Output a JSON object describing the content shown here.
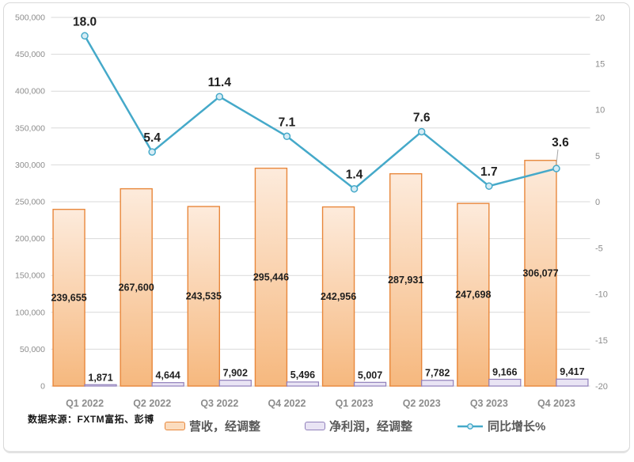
{
  "frame": {
    "source_note": "数据来源：FXTM富拓、彭博"
  },
  "legend": {
    "items": [
      {
        "label": "营收，经调整",
        "swatch": "bar",
        "fill": "#FBDCBE",
        "border": "#E8873B"
      },
      {
        "label": "净利润，经调整",
        "swatch": "bar",
        "fill": "#E9E4F4",
        "border": "#9180BB"
      },
      {
        "label": "同比增长%",
        "swatch": "line",
        "color": "#45A9C9",
        "marker_fill": "#D6ECF5"
      }
    ]
  },
  "chart_data": {
    "type": "combo-bar-line",
    "title": "",
    "categories": [
      "Q1 2022",
      "Q2 2022",
      "Q3 2022",
      "Q4 2022",
      "Q1 2023",
      "Q2 2023",
      "Q3 2023",
      "Q4 2023"
    ],
    "series": [
      {
        "name": "营收，经调整",
        "type": "bar",
        "axis": "left",
        "values": [
          239655,
          267600,
          243535,
          295446,
          242956,
          287931,
          247698,
          306077
        ],
        "labels": [
          "239,655",
          "267,600",
          "243,535",
          "295,446",
          "242,956",
          "287,931",
          "247,698",
          "306,077"
        ],
        "fill_top": "#FDEBDC",
        "fill_bottom": "#F6B87E",
        "border": "#E8873B"
      },
      {
        "name": "净利润，经调整",
        "type": "bar",
        "axis": "left",
        "values": [
          1871,
          4644,
          7902,
          5496,
          5007,
          7782,
          9166,
          9417
        ],
        "labels": [
          "1,871",
          "4,644",
          "7,902",
          "5,496",
          "5,007",
          "7,782",
          "9,166",
          "9,417"
        ],
        "fill": "#E9E4F4",
        "border": "#9180BB"
      },
      {
        "name": "同比增长%",
        "type": "line",
        "axis": "right",
        "values": [
          18.0,
          5.4,
          11.4,
          7.1,
          1.4,
          7.6,
          1.7,
          3.6
        ],
        "labels": [
          "18.0",
          "5.4",
          "11.4",
          "7.1",
          "1.4",
          "7.6",
          "1.7",
          "3.6"
        ],
        "color": "#45A9C9",
        "marker_fill": "#D6ECF5"
      }
    ],
    "left_axis": {
      "min": 0,
      "max": 500000,
      "step": 50000,
      "tick_labels_top_to_bottom": [
        "500,000",
        "450,000",
        "400,000",
        "350,000",
        "300,000",
        "250,000",
        "200,000",
        "150,000",
        "100,000",
        "50,000",
        "0"
      ]
    },
    "right_axis": {
      "min": -20,
      "max": 20,
      "step": 5,
      "tick_labels_top_to_bottom": [
        "20",
        "15",
        "10",
        "5",
        "0",
        "-5",
        "-10",
        "-15",
        "-20"
      ]
    },
    "gridlines": "horizontal-left-axis",
    "legend_position": "bottom",
    "colors": {
      "gridline": "#D9D9D9",
      "axis_text": "#8C8C8C",
      "category_text": "#8C8C8C",
      "value_label_text": "#1F1F1F",
      "leader_line": "#A6A6A6"
    }
  }
}
